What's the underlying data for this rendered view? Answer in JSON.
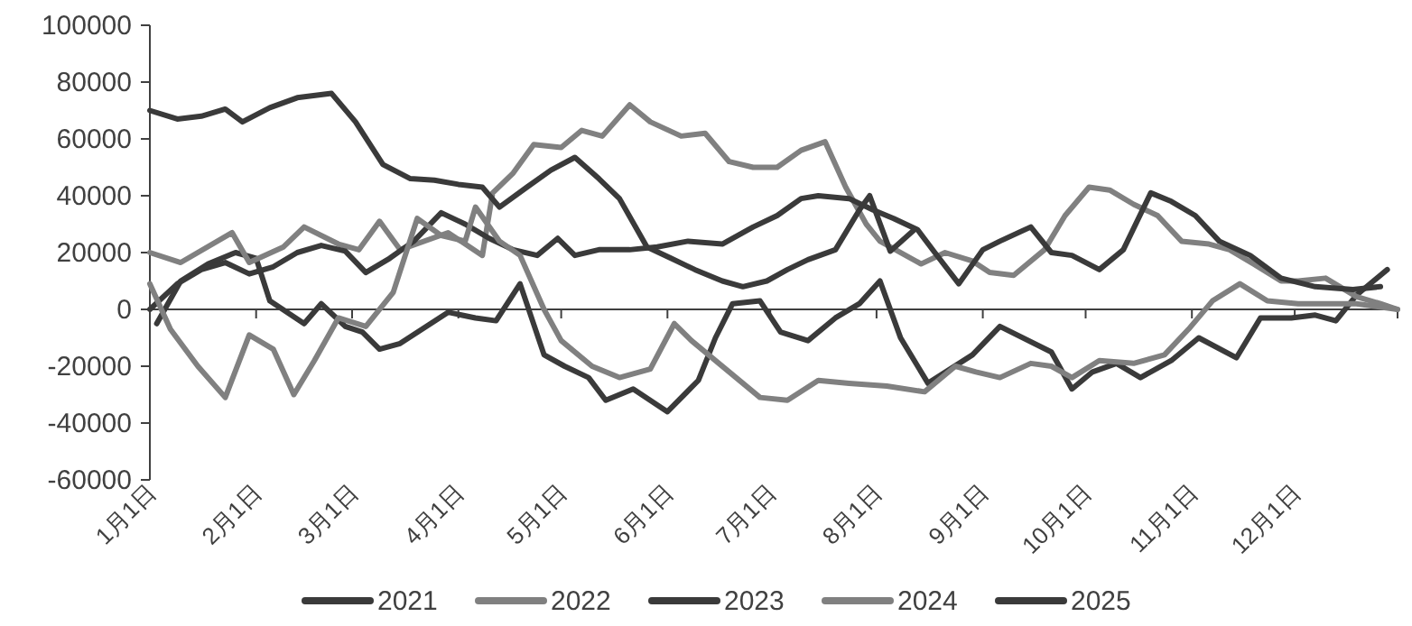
{
  "chart_data": {
    "type": "line",
    "xlim": [
      "--01-01",
      "--12-31"
    ],
    "ylim": [
      -60000,
      100000
    ],
    "legend": "bottom",
    "ref_lines": [
      {
        "axis": "y",
        "value": 0,
        "color": "#404040"
      }
    ],
    "xticks": [
      {
        "value": "--01-01",
        "label": "1月1日"
      },
      {
        "value": "--02-01",
        "label": "2月1日"
      },
      {
        "value": "--03-01",
        "label": "3月1日"
      },
      {
        "value": "--04-01",
        "label": "4月1日"
      },
      {
        "value": "--05-01",
        "label": "5月1日"
      },
      {
        "value": "--06-01",
        "label": "6月1日"
      },
      {
        "value": "--07-01",
        "label": "7月1日"
      },
      {
        "value": "--08-01",
        "label": "8月1日"
      },
      {
        "value": "--09-01",
        "label": "9月1日"
      },
      {
        "value": "--10-01",
        "label": "10月1日"
      },
      {
        "value": "--11-01",
        "label": "11月1日"
      },
      {
        "value": "--12-01",
        "label": "12月1日"
      },
      {
        "value": "--12-31",
        "label": null
      }
    ],
    "yticks": [
      -60000,
      -40000,
      -20000,
      0,
      20000,
      40000,
      60000,
      80000,
      100000
    ],
    "series": [
      {
        "name": "2021",
        "color": "#3a3a3a",
        "x": [
          "--01-03",
          "--01-10",
          "--01-18",
          "--01-26",
          "--02-01",
          "--02-05",
          "--02-15",
          "--02-20",
          "--02-27",
          "--03-04",
          "--03-09",
          "--03-15",
          "--03-29",
          "--04-06",
          "--04-12",
          "--04-19",
          "--04-26",
          "--05-02",
          "--05-09",
          "--05-14",
          "--05-22",
          "--06-01",
          "--06-10",
          "--06-15",
          "--06-20",
          "--06-28",
          "--07-04",
          "--07-12",
          "--07-20",
          "--07-27",
          "--08-02",
          "--08-08",
          "--08-16",
          "--08-29",
          "--09-06",
          "--09-21",
          "--09-27",
          "--10-03",
          "--10-10",
          "--10-17",
          "--10-26",
          "--11-03",
          "--11-14",
          "--11-21",
          "--11-30",
          "--12-07",
          "--12-13",
          "--12-19",
          "--12-28"
        ],
        "values": [
          -5000,
          10000,
          16000,
          20000,
          18000,
          3000,
          -5000,
          2000,
          -6000,
          -8000,
          -14000,
          -12000,
          -1000,
          -3000,
          -4000,
          9000,
          -16000,
          -20000,
          -24000,
          -32000,
          -28000,
          -36000,
          -25000,
          -10000,
          2000,
          3000,
          -8000,
          -11000,
          -3000,
          2000,
          10000,
          -10000,
          -26000,
          -16000,
          -6000,
          -15000,
          -28000,
          -22000,
          -19000,
          -24000,
          -18000,
          -10000,
          -17000,
          -3000,
          -3000,
          -2000,
          -4000,
          5000,
          14000
        ]
      },
      {
        "name": "2022",
        "color": "#808080",
        "x": [
          "--01-01",
          "--01-10",
          "--01-25",
          "--01-30",
          "--02-09",
          "--02-15",
          "--02-25",
          "--03-03",
          "--03-09",
          "--03-15",
          "--03-29",
          "--04-03",
          "--04-08",
          "--04-11",
          "--04-17",
          "--04-23",
          "--05-01",
          "--05-07",
          "--05-13",
          "--05-21",
          "--05-27",
          "--06-05",
          "--06-12",
          "--06-19",
          "--06-26",
          "--07-03",
          "--07-10",
          "--07-17",
          "--07-23",
          "--07-29",
          "--08-02",
          "--08-14",
          "--08-21",
          "--08-29",
          "--09-03",
          "--09-10",
          "--09-19",
          "--09-25",
          "--10-02",
          "--10-08",
          "--10-15",
          "--10-22",
          "--10-29",
          "--11-06",
          "--11-12",
          "--11-19",
          "--11-27",
          "--12-02",
          "--12-10",
          "--12-19",
          "--12-26",
          "--12-31"
        ],
        "values": [
          20000,
          16500,
          27000,
          16500,
          22000,
          29000,
          23000,
          21000,
          31000,
          21000,
          27000,
          23000,
          19000,
          41000,
          48000,
          58000,
          57000,
          63000,
          61000,
          72000,
          66000,
          61000,
          62000,
          52000,
          50000,
          50000,
          56000,
          59000,
          43000,
          30000,
          24000,
          16000,
          20000,
          17000,
          13000,
          12000,
          21000,
          33000,
          43000,
          42000,
          37000,
          33000,
          24000,
          23000,
          21000,
          16000,
          10000,
          10000,
          11000,
          4500,
          2000,
          0
        ]
      },
      {
        "name": "2023",
        "color": "#3a3a3a",
        "x": [
          "--01-01",
          "--01-09",
          "--01-16",
          "--01-23",
          "--01-30",
          "--02-06",
          "--02-13",
          "--02-20",
          "--02-27",
          "--03-05",
          "--03-12",
          "--03-19",
          "--03-27",
          "--04-03",
          "--04-10",
          "--04-17",
          "--04-24",
          "--04-30",
          "--05-05",
          "--05-12",
          "--05-21",
          "--05-29",
          "--06-07",
          "--06-17",
          "--06-26",
          "--07-03",
          "--07-10",
          "--07-15",
          "--07-24",
          "--07-31",
          "--08-06",
          "--08-13",
          "--08-18",
          "--08-25",
          "--09-01",
          "--09-06",
          "--09-15",
          "--09-21",
          "--09-27",
          "--10-05",
          "--10-12",
          "--10-20",
          "--10-26",
          "--11-02",
          "--11-09",
          "--11-18",
          "--11-27",
          "--12-07",
          "--12-18",
          "--12-26"
        ],
        "values": [
          0,
          9000,
          14000,
          16500,
          12500,
          15000,
          20000,
          22500,
          20500,
          13000,
          18000,
          24000,
          34000,
          30000,
          25000,
          21000,
          19000,
          25000,
          19000,
          21000,
          21000,
          22000,
          24000,
          23000,
          29000,
          33000,
          39000,
          40000,
          39000,
          35000,
          32000,
          28000,
          20000,
          9000,
          21000,
          24000,
          29000,
          20000,
          19000,
          14000,
          21000,
          41000,
          38000,
          33000,
          24000,
          19000,
          11000,
          8000,
          7000,
          8000
        ]
      },
      {
        "name": "2024",
        "color": "#808080",
        "x": [
          "--01-01",
          "--01-07",
          "--01-15",
          "--01-23",
          "--01-30",
          "--02-06",
          "--02-12",
          "--02-18",
          "--02-25",
          "--03-05",
          "--03-13",
          "--03-20",
          "--03-27",
          "--04-03",
          "--04-06",
          "--04-13",
          "--04-19",
          "--04-26",
          "--05-01",
          "--05-10",
          "--05-18",
          "--05-27",
          "--06-03",
          "--06-08",
          "--06-16",
          "--06-28",
          "--07-06",
          "--07-15",
          "--07-24",
          "--08-04",
          "--08-15",
          "--08-24",
          "--08-30",
          "--09-06",
          "--09-15",
          "--09-21",
          "--09-27",
          "--10-05",
          "--10-15",
          "--10-24",
          "--10-31",
          "--11-07",
          "--11-15",
          "--11-23",
          "--12-02",
          "--12-10",
          "--12-19",
          "--12-31"
        ],
        "values": [
          9000,
          -7000,
          -20000,
          -31000,
          -9000,
          -14000,
          -30000,
          -18000,
          -3000,
          -6000,
          6000,
          32000,
          26000,
          24000,
          36000,
          24000,
          19000,
          0,
          -11000,
          -20000,
          -24000,
          -21000,
          -5000,
          -11000,
          -19000,
          -31000,
          -32000,
          -25000,
          -26000,
          -27000,
          -29000,
          -20000,
          -22000,
          -24000,
          -19000,
          -20000,
          -24000,
          -18000,
          -19000,
          -16000,
          -7000,
          3000,
          9000,
          3000,
          2000,
          2000,
          2000,
          0
        ]
      },
      {
        "name": "2025",
        "color": "#3a3a3a",
        "x": [
          "--01-01",
          "--01-09",
          "--01-16",
          "--01-23",
          "--01-28",
          "--02-05",
          "--02-13",
          "--02-23",
          "--03-02",
          "--03-10",
          "--03-18",
          "--03-25",
          "--04-01",
          "--04-08",
          "--04-13",
          "--04-21",
          "--04-28",
          "--05-05",
          "--05-12",
          "--05-18",
          "--05-26",
          "--06-02",
          "--06-09",
          "--06-17",
          "--06-23",
          "--06-30",
          "--07-06",
          "--07-12",
          "--07-20",
          "--07-27",
          "--07-30",
          "--08-05",
          "--08-12"
        ],
        "values": [
          70000,
          67000,
          68000,
          70500,
          66000,
          71000,
          74500,
          76000,
          66000,
          51000,
          46000,
          45500,
          44000,
          43000,
          36000,
          43000,
          49000,
          53500,
          46000,
          39000,
          22000,
          18000,
          14000,
          10000,
          8000,
          10000,
          14000,
          17500,
          21000,
          35000,
          40000,
          20500,
          28000
        ]
      }
    ]
  }
}
